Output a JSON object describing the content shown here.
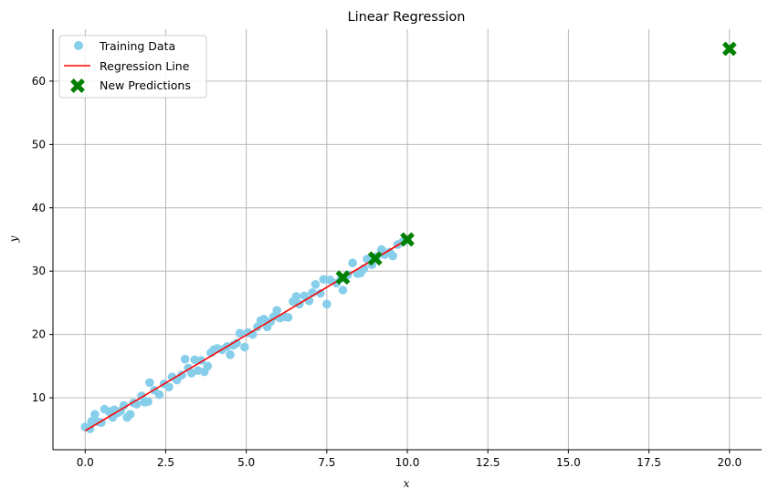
{
  "chart_data": {
    "type": "scatter",
    "title": "Linear Regression",
    "xlabel": "x",
    "ylabel": "y",
    "xlim": [
      -1.0,
      21.0
    ],
    "ylim": [
      1.8,
      68.2
    ],
    "xticks": [
      0.0,
      2.5,
      5.0,
      7.5,
      10.0,
      12.5,
      15.0,
      17.5,
      20.0
    ],
    "xtick_labels": [
      "0.0",
      "2.5",
      "5.0",
      "7.5",
      "10.0",
      "12.5",
      "15.0",
      "17.5",
      "20.0"
    ],
    "yticks": [
      10,
      20,
      30,
      40,
      50,
      60
    ],
    "ytick_labels": [
      "10",
      "20",
      "30",
      "40",
      "50",
      "60"
    ],
    "grid": true,
    "legend_position": "top-left",
    "series": [
      {
        "name": "Training Data",
        "kind": "scatter",
        "marker": "circle",
        "color": "#87ceeb",
        "points": [
          [
            0.0,
            5.4
          ],
          [
            0.15,
            5.1
          ],
          [
            0.2,
            6.3
          ],
          [
            0.3,
            7.4
          ],
          [
            0.4,
            6.2
          ],
          [
            0.5,
            6.1
          ],
          [
            0.6,
            8.2
          ],
          [
            0.75,
            7.8
          ],
          [
            0.85,
            6.9
          ],
          [
            0.9,
            8.1
          ],
          [
            1.0,
            7.6
          ],
          [
            1.1,
            7.9
          ],
          [
            1.2,
            8.8
          ],
          [
            1.3,
            6.9
          ],
          [
            1.4,
            7.4
          ],
          [
            1.5,
            9.2
          ],
          [
            1.6,
            9.0
          ],
          [
            1.75,
            10.3
          ],
          [
            1.85,
            9.3
          ],
          [
            1.95,
            9.4
          ],
          [
            2.0,
            12.4
          ],
          [
            2.15,
            11.2
          ],
          [
            2.3,
            10.5
          ],
          [
            2.45,
            12.2
          ],
          [
            2.6,
            11.7
          ],
          [
            2.7,
            13.3
          ],
          [
            2.85,
            12.8
          ],
          [
            3.0,
            13.6
          ],
          [
            3.1,
            16.1
          ],
          [
            3.2,
            14.7
          ],
          [
            3.3,
            13.9
          ],
          [
            3.4,
            16.0
          ],
          [
            3.5,
            14.3
          ],
          [
            3.6,
            15.9
          ],
          [
            3.7,
            14.1
          ],
          [
            3.8,
            15.0
          ],
          [
            3.9,
            17.1
          ],
          [
            4.0,
            17.6
          ],
          [
            4.1,
            17.8
          ],
          [
            4.25,
            17.6
          ],
          [
            4.4,
            18.1
          ],
          [
            4.5,
            16.8
          ],
          [
            4.6,
            18.3
          ],
          [
            4.7,
            18.6
          ],
          [
            4.8,
            20.2
          ],
          [
            4.95,
            18.0
          ],
          [
            5.05,
            20.3
          ],
          [
            5.2,
            20.0
          ],
          [
            5.35,
            21.2
          ],
          [
            5.45,
            22.2
          ],
          [
            5.55,
            22.4
          ],
          [
            5.65,
            21.2
          ],
          [
            5.75,
            22.0
          ],
          [
            5.85,
            22.8
          ],
          [
            5.95,
            23.8
          ],
          [
            6.05,
            22.6
          ],
          [
            6.2,
            22.8
          ],
          [
            6.3,
            22.7
          ],
          [
            6.45,
            25.2
          ],
          [
            6.55,
            26.0
          ],
          [
            6.65,
            24.8
          ],
          [
            6.8,
            26.1
          ],
          [
            6.95,
            25.3
          ],
          [
            7.05,
            26.6
          ],
          [
            7.15,
            27.9
          ],
          [
            7.3,
            26.5
          ],
          [
            7.4,
            28.7
          ],
          [
            7.5,
            24.8
          ],
          [
            7.6,
            28.6
          ],
          [
            7.8,
            28.1
          ],
          [
            7.95,
            28.9
          ],
          [
            8.0,
            27.0
          ],
          [
            8.15,
            29.4
          ],
          [
            8.3,
            31.3
          ],
          [
            8.45,
            29.6
          ],
          [
            8.55,
            29.7
          ],
          [
            8.65,
            30.4
          ],
          [
            8.75,
            31.9
          ],
          [
            8.9,
            31.0
          ],
          [
            9.05,
            32.3
          ],
          [
            9.2,
            33.4
          ],
          [
            9.3,
            32.6
          ],
          [
            9.45,
            33.0
          ],
          [
            9.55,
            32.4
          ],
          [
            9.7,
            34.2
          ],
          [
            9.85,
            34.6
          ],
          [
            10.0,
            34.9
          ]
        ]
      },
      {
        "name": "Regression Line",
        "kind": "line",
        "color": "#ff0000",
        "points": [
          [
            0.0,
            4.8
          ],
          [
            10.0,
            35.0
          ]
        ]
      },
      {
        "name": "New Predictions",
        "kind": "scatter",
        "marker": "x-filled",
        "color": "#008000",
        "points": [
          [
            8.0,
            29.0
          ],
          [
            9.0,
            32.0
          ],
          [
            10.0,
            35.0
          ],
          [
            20.0,
            65.1
          ]
        ]
      }
    ]
  }
}
